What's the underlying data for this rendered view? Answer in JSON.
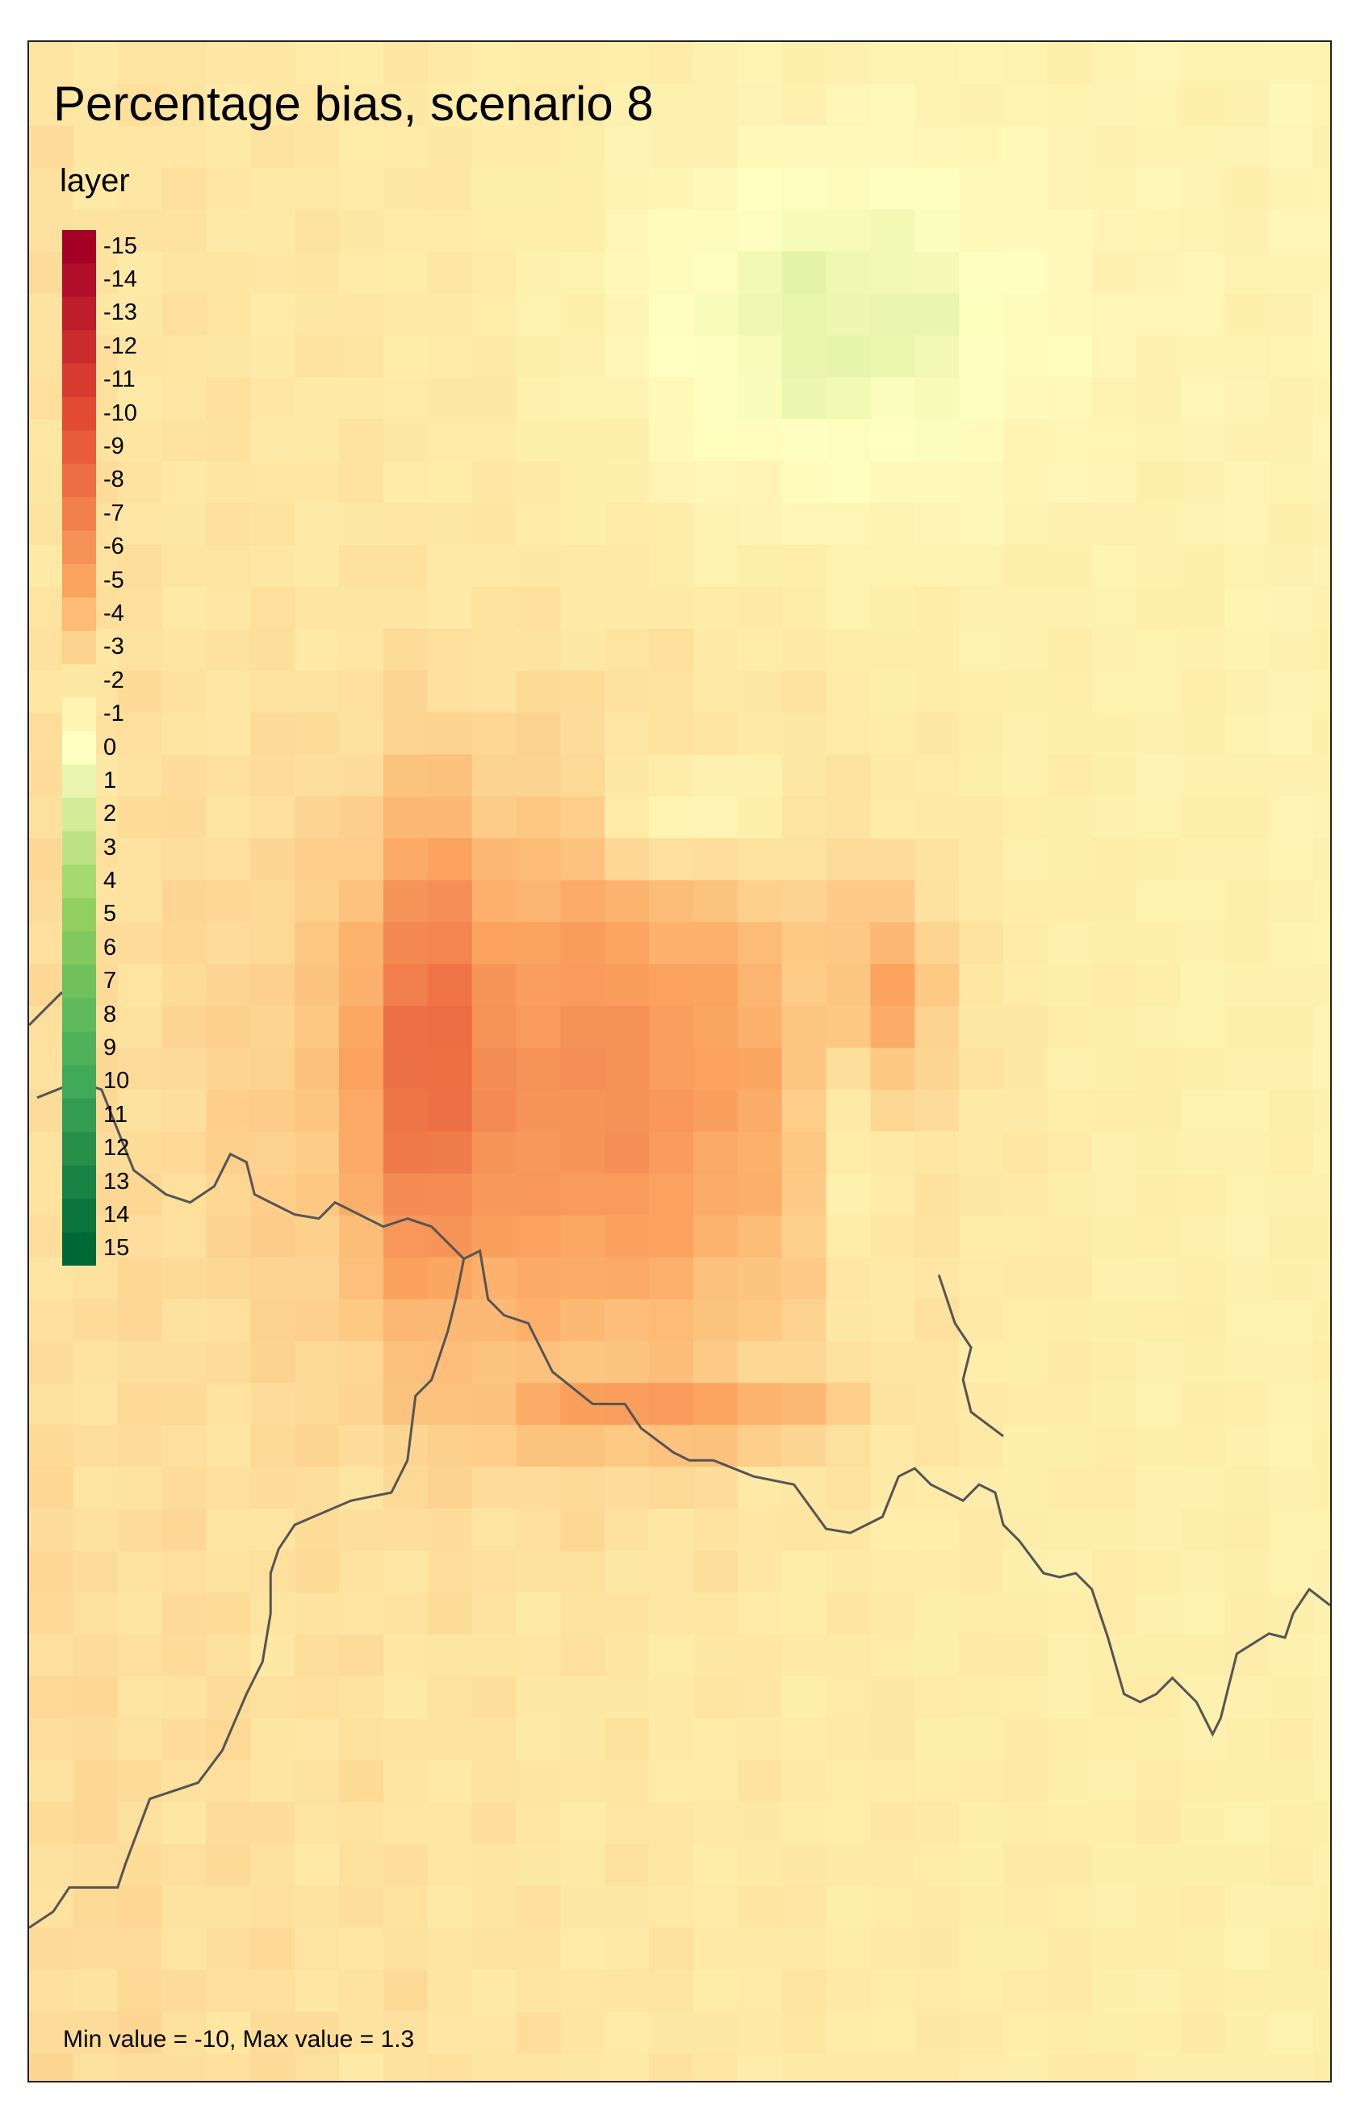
{
  "map": {
    "title": "Percentage bias, scenario 8",
    "legend_title": "layer",
    "stats_caption": "Min value = -10, Max value = 1.3",
    "palette": {
      "-15": "#a50026",
      "-10": "#e34a33",
      "-5": "#fba45f",
      "-2": "#fee8a5",
      "0": "#ffffbf",
      "5": "#91cf60",
      "10": "#3faa59",
      "15": "#006837",
      "background": "#fdf4b8",
      "border_line": "#555555"
    },
    "legend_labels": [
      "-15",
      "-14",
      "-13",
      "-12",
      "-11",
      "-10",
      "-9",
      "-8",
      "-7",
      "-6",
      "-5",
      "-4",
      "-3",
      "-2",
      "-1",
      "0",
      "1",
      "2",
      "3",
      "4",
      "5",
      "6",
      "7",
      "8",
      "9",
      "10",
      "11",
      "12",
      "13",
      "14",
      "15"
    ],
    "legend_range": [
      -15,
      15
    ]
  }
}
